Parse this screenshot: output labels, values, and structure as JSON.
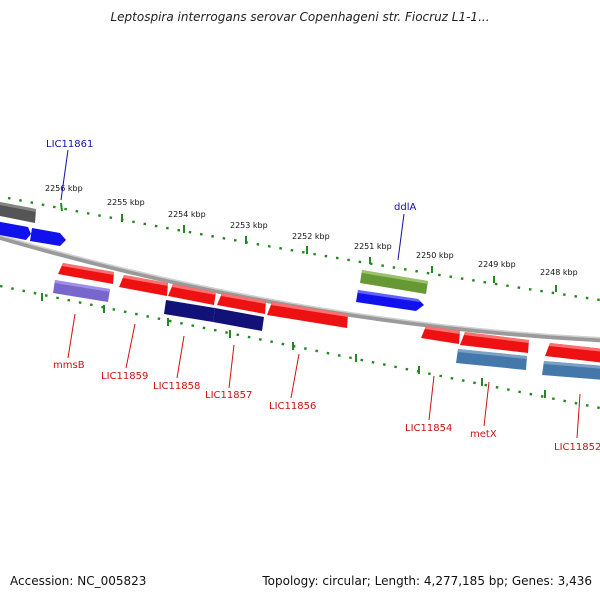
{
  "title": "Leptospira interrogans serovar Copenhageni str. Fiocruz L1-1...",
  "footer": {
    "accession": "Accession: NC_005823",
    "summary": "Topology: circular; Length: 4,277,185 bp; Genes: 3,436"
  },
  "kbp_labels": [
    "2256 kbp",
    "2255 kbp",
    "2254 kbp",
    "2253 kbp",
    "2252 kbp",
    "2251 kbp",
    "2250 kbp",
    "2249 kbp",
    "2248 kbp"
  ],
  "genes": [
    {
      "name": "LIC11861",
      "strand": "forward",
      "color": "#3333cc"
    },
    {
      "name": "ddlA",
      "strand": "forward",
      "color": "#3333cc"
    },
    {
      "name": "mmsB",
      "strand": "reverse",
      "color": "#cc2222"
    },
    {
      "name": "LIC11859",
      "strand": "reverse",
      "color": "#cc2222"
    },
    {
      "name": "LIC11858",
      "strand": "reverse",
      "color": "#cc2222"
    },
    {
      "name": "LIC11857",
      "strand": "reverse",
      "color": "#cc2222"
    },
    {
      "name": "LIC11856",
      "strand": "reverse",
      "color": "#cc2222"
    },
    {
      "name": "LIC11854",
      "strand": "reverse",
      "color": "#cc2222"
    },
    {
      "name": "metX",
      "strand": "reverse",
      "color": "#cc2222"
    },
    {
      "name": "LIC11852",
      "strand": "reverse",
      "color": "#cc2222"
    }
  ],
  "colors": {
    "backbone": "#888888",
    "tick": "#228822",
    "red_feature": "#ee1111",
    "blue_feature": "#1111ee",
    "navy_feature": "#111177",
    "steel_feature": "#4477aa",
    "olive_feature": "#669933",
    "lavender_feature": "#7766cc",
    "gray_feature": "#555555"
  }
}
